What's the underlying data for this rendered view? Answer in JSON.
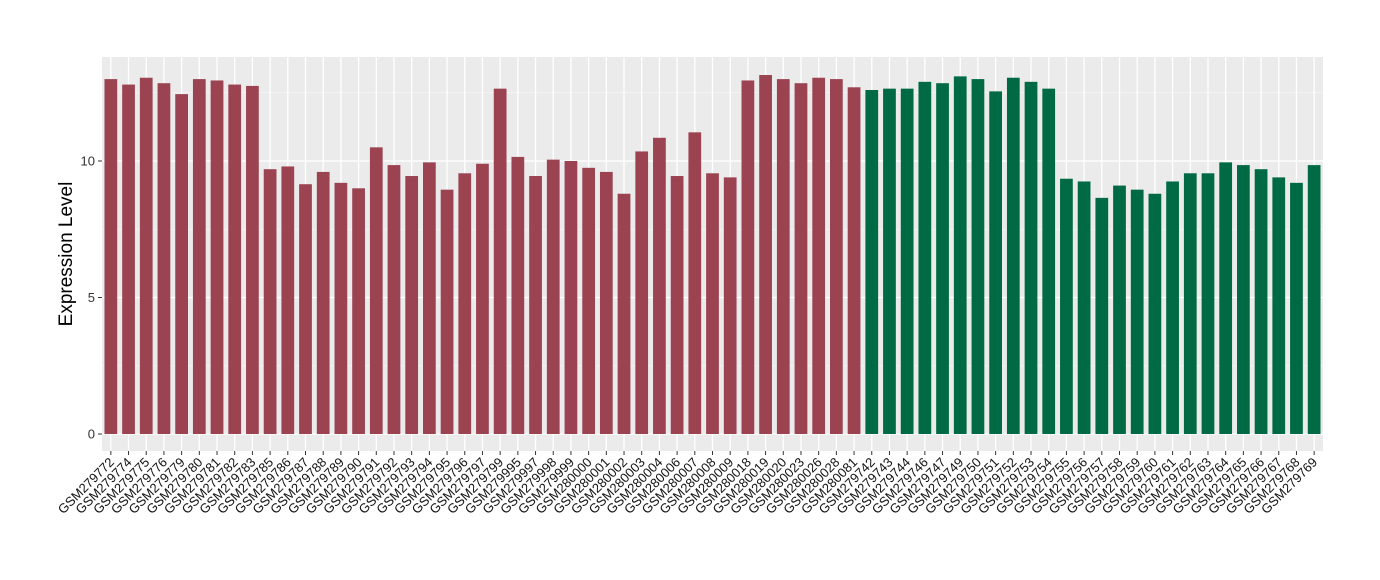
{
  "chart_data": {
    "type": "bar",
    "title": "",
    "xlabel": "",
    "ylabel": "Expression Level",
    "ylim": [
      0,
      13.5
    ],
    "yticks": [
      0,
      5,
      10
    ],
    "grid": true,
    "panel_background": "#EBEBEB",
    "colors": {
      "group_1": "#9B4351",
      "group_2": "#006A44"
    },
    "categories": [
      "GSM279772",
      "GSM279774",
      "GSM279775",
      "GSM279776",
      "GSM279779",
      "GSM279780",
      "GSM279781",
      "GSM279782",
      "GSM279783",
      "GSM279785",
      "GSM279786",
      "GSM279787",
      "GSM279788",
      "GSM279789",
      "GSM279790",
      "GSM279791",
      "GSM279792",
      "GSM279793",
      "GSM279794",
      "GSM279795",
      "GSM279796",
      "GSM279797",
      "GSM279799",
      "GSM279995",
      "GSM279997",
      "GSM279998",
      "GSM279999",
      "GSM280000",
      "GSM280001",
      "GSM280002",
      "GSM280003",
      "GSM280004",
      "GSM280006",
      "GSM280007",
      "GSM280008",
      "GSM280009",
      "GSM280018",
      "GSM280019",
      "GSM280020",
      "GSM280023",
      "GSM280026",
      "GSM280028",
      "GSM280081",
      "GSM279742",
      "GSM279743",
      "GSM279744",
      "GSM279746",
      "GSM279747",
      "GSM279749",
      "GSM279750",
      "GSM279751",
      "GSM279752",
      "GSM279753",
      "GSM279754",
      "GSM279755",
      "GSM279756",
      "GSM279757",
      "GSM279758",
      "GSM279759",
      "GSM279760",
      "GSM279761",
      "GSM279762",
      "GSM279763",
      "GSM279764",
      "GSM279765",
      "GSM279766",
      "GSM279767",
      "GSM279768",
      "GSM279769"
    ],
    "values": [
      13.0,
      12.8,
      13.05,
      12.85,
      12.45,
      13.0,
      12.95,
      12.8,
      12.75,
      9.7,
      9.8,
      9.15,
      9.6,
      9.2,
      9.0,
      10.5,
      9.85,
      9.45,
      9.95,
      8.95,
      9.55,
      9.9,
      12.65,
      10.15,
      9.45,
      10.05,
      10.0,
      9.75,
      9.6,
      8.8,
      10.35,
      10.85,
      9.45,
      11.05,
      9.55,
      9.4,
      12.95,
      13.15,
      13.0,
      12.85,
      13.05,
      13.0,
      12.7,
      12.6,
      12.65,
      12.65,
      12.9,
      12.85,
      13.1,
      13.0,
      12.55,
      13.05,
      12.9,
      12.65,
      9.35,
      9.25,
      8.65,
      9.1,
      8.95,
      8.8,
      9.25,
      9.55,
      9.55,
      9.95,
      9.85,
      9.7,
      9.4,
      9.2,
      9.85
    ],
    "groups": [
      "group_1",
      "group_1",
      "group_1",
      "group_1",
      "group_1",
      "group_1",
      "group_1",
      "group_1",
      "group_1",
      "group_1",
      "group_1",
      "group_1",
      "group_1",
      "group_1",
      "group_1",
      "group_1",
      "group_1",
      "group_1",
      "group_1",
      "group_1",
      "group_1",
      "group_1",
      "group_1",
      "group_1",
      "group_1",
      "group_1",
      "group_1",
      "group_1",
      "group_1",
      "group_1",
      "group_1",
      "group_1",
      "group_1",
      "group_1",
      "group_1",
      "group_1",
      "group_1",
      "group_1",
      "group_1",
      "group_1",
      "group_1",
      "group_1",
      "group_1",
      "group_2",
      "group_2",
      "group_2",
      "group_2",
      "group_2",
      "group_2",
      "group_2",
      "group_2",
      "group_2",
      "group_2",
      "group_2",
      "group_2",
      "group_2",
      "group_2",
      "group_2",
      "group_2",
      "group_2",
      "group_2",
      "group_2",
      "group_2",
      "group_2",
      "group_2",
      "group_2",
      "group_2",
      "group_2",
      "group_2"
    ]
  }
}
